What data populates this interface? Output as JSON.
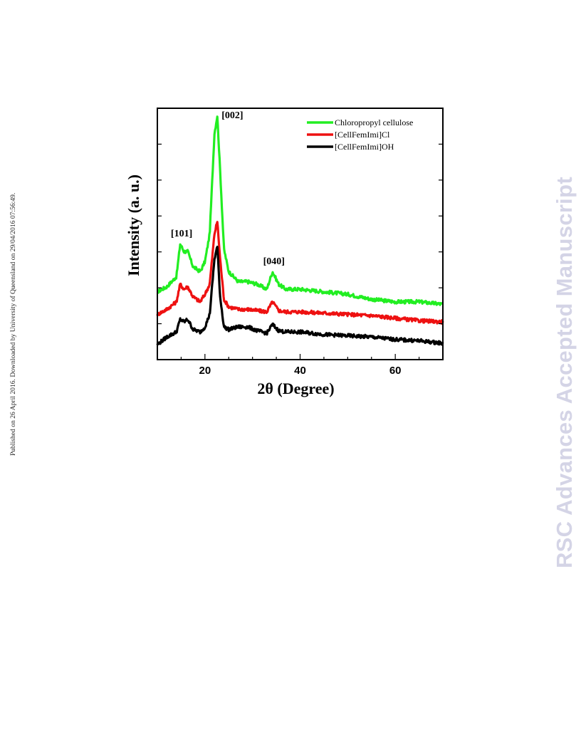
{
  "side_note": "Published on 26 April 2016. Downloaded by University of Queensland on 29/04/2016 07:56:49.",
  "watermark": "RSC Advances Accepted Manuscript",
  "chart_data": {
    "type": "line",
    "xlabel": "2θ (Degree)",
    "ylabel": "Intensity (a. u.)",
    "xlim": [
      10,
      70
    ],
    "xticks": [
      20,
      40,
      60
    ],
    "ylim": [
      0,
      100
    ],
    "grid": false,
    "legend_position": "top-right",
    "annotations": [
      {
        "text": "[101]",
        "x": 14.8,
        "y": 49
      },
      {
        "text": "[002]",
        "x": 22.6,
        "y": 96
      },
      {
        "text": "[040]",
        "x": 34.2,
        "y": 38
      }
    ],
    "x": [
      10,
      12,
      14,
      14.8,
      15.6,
      16.4,
      17.5,
      19,
      20,
      21,
      22,
      22.6,
      23.2,
      24,
      25,
      27,
      29,
      31,
      33,
      34.2,
      35.5,
      37,
      40,
      45,
      50,
      55,
      60,
      65,
      70
    ],
    "series": [
      {
        "name": "Chloropropyl cellulose",
        "color": "#22ee22",
        "values": [
          27,
          29,
          33,
          46,
          43,
          43,
          37,
          35,
          39,
          50,
          90,
          97,
          75,
          44,
          35,
          31,
          31,
          30,
          28,
          35,
          30,
          28,
          28,
          27,
          26,
          24,
          23,
          23,
          22
        ]
      },
      {
        "name": "[CellFemImi]Cl",
        "color": "#ee1111",
        "values": [
          18,
          20,
          23,
          30,
          28,
          29,
          25,
          23,
          26,
          30,
          50,
          55,
          40,
          24,
          21,
          20,
          20,
          19.5,
          19,
          23,
          19.5,
          19,
          19,
          18.5,
          18,
          17.5,
          16.5,
          15.5,
          15
        ]
      },
      {
        "name": "[CellFemImi]OH",
        "color": "#000000",
        "values": [
          6,
          9,
          11,
          16,
          15,
          16,
          12,
          11,
          13,
          18,
          40,
          45,
          25,
          13,
          12,
          13,
          13,
          11.5,
          10.5,
          14,
          11.5,
          11,
          11,
          10,
          9.5,
          9,
          8,
          7.5,
          6.5
        ]
      }
    ]
  }
}
